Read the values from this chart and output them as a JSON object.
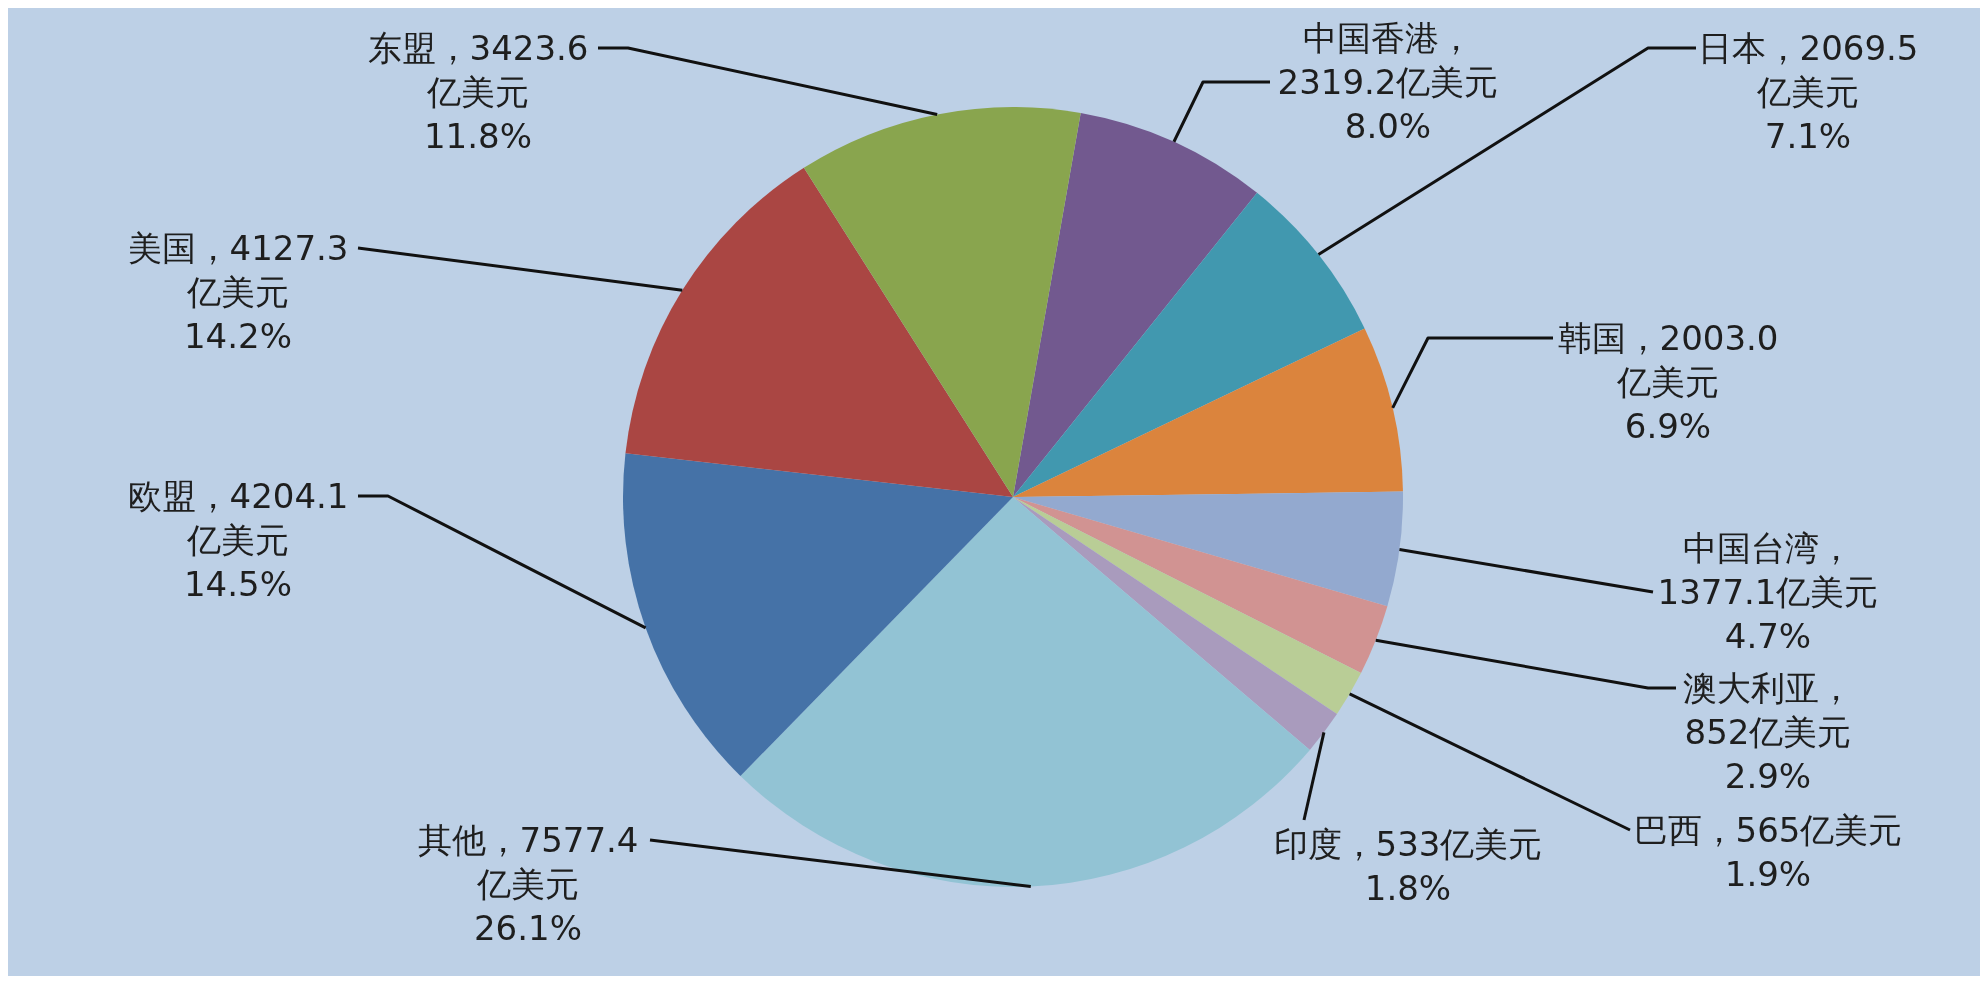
{
  "chart_data": {
    "type": "pie",
    "categories": [
      "中国香港",
      "日本",
      "韩国",
      "中国台湾",
      "澳大利亚",
      "巴西",
      "印度",
      "其他",
      "欧盟",
      "美国",
      "东盟"
    ],
    "values": [
      2319.2,
      2069.5,
      2003.0,
      1377.1,
      852,
      565,
      533,
      7577.4,
      4204.1,
      4127.3,
      3423.6
    ],
    "colors": [
      "#72598f",
      "#4198af",
      "#db843d",
      "#93a9cf",
      "#d19392",
      "#b9cd96",
      "#a99bbd",
      "#92c3d4",
      "#4572a7",
      "#aa4643",
      "#89a54e"
    ],
    "value_labels": [
      "，\n2319.2亿美元\n8.0%",
      "，2069.5\n亿美元\n7.1%",
      "，2003.0\n亿美元\n6.9%",
      "，\n1377.1亿美元\n4.7%",
      "，\n852亿美元\n2.9%",
      "，565亿美元\n1.9%",
      "，533亿美元\n1.8%",
      "，7577.4\n亿美元\n26.1%",
      "，4204.1\n亿美元\n14.5%",
      "，4127.3\n亿美元\n14.2%",
      "，3423.6\n亿美元\n11.8%"
    ]
  }
}
